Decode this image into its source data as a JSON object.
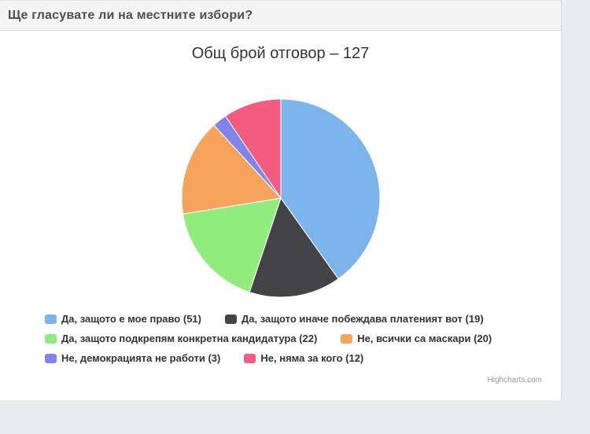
{
  "page": {
    "header": {
      "title": "Ще гласувате ли на местните избори?"
    },
    "credit": "Highcharts.com"
  },
  "chart_data": {
    "type": "pie",
    "title": "Общ брой отговор – 127",
    "total_responses": 127,
    "slices": [
      {
        "label": "Да, защото е мое право",
        "value": 51,
        "color": "#7cb5ec"
      },
      {
        "label": "Да, защото иначе побеждава платеният вот",
        "value": 19,
        "color": "#434348"
      },
      {
        "label": "Да, защото подкрепям конкретна кандидатура",
        "value": 22,
        "color": "#90ed7d"
      },
      {
        "label": "Не, всички са маскари",
        "value": 20,
        "color": "#f7a35c"
      },
      {
        "label": "Не, демокрацията не работи",
        "value": 3,
        "color": "#8085e9"
      },
      {
        "label": "Не, няма за кого",
        "value": 12,
        "color": "#f15c80"
      }
    ],
    "start_angle_deg": 0,
    "direction": "clockwise",
    "slice_border_color": "#ffffff",
    "legend": {
      "position": "bottom",
      "label_format": "{label} ({value})",
      "rows": [
        [
          0,
          1
        ],
        [
          2,
          3
        ],
        [
          4,
          5
        ]
      ]
    }
  }
}
